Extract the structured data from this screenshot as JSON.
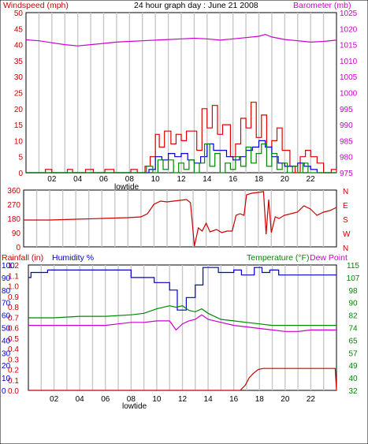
{
  "chart_data": [
    {
      "type": "line",
      "title": "24 hour graph day : June 21 2008",
      "left_axis_label": "Windspeed (mph)",
      "right_axis_label": "Barometer (mb)",
      "left_ylim": [
        0,
        50
      ],
      "left_ticks": [
        "0",
        "5",
        "10",
        "15",
        "20",
        "25",
        "30",
        "35",
        "40",
        "45",
        "50"
      ],
      "right_ylim": [
        975,
        1025
      ],
      "right_ticks": [
        "975",
        "980",
        "985",
        "990",
        "995",
        "1000",
        "1005",
        "1010",
        "1015",
        "1020",
        "1025"
      ],
      "x_ticks": [
        "02",
        "04",
        "06",
        "08",
        "10",
        "12",
        "14",
        "16",
        "18",
        "20",
        "22"
      ],
      "x_marker": "lowtide",
      "colors": {
        "gust": "#dd0000",
        "average": "#0000cc",
        "speed": "#008800",
        "barometer": "#cc00cc"
      },
      "series": [
        {
          "key": "gust",
          "axis": "left",
          "x": [
            0,
            1.5,
            2,
            3.2,
            3.6,
            4.6,
            5.2,
            6.1,
            6.8,
            8.1,
            8.6,
            9.2,
            9.6,
            10,
            10.3,
            10.7,
            11.2,
            11.6,
            12,
            12.4,
            13.2,
            13.6,
            14,
            14.4,
            14.8,
            15.2,
            15.8,
            16.2,
            16.6,
            17,
            17.4,
            17.8,
            18.2,
            18.6,
            19,
            19.4,
            19.8,
            20.4,
            20.8,
            21.2,
            21.6,
            22,
            22.5,
            23,
            23.6,
            24
          ],
          "y": [
            0,
            1,
            0,
            1,
            0,
            1,
            0,
            1,
            0,
            1,
            0,
            2,
            5,
            12,
            8,
            13,
            9,
            12,
            10,
            13,
            7,
            20,
            14,
            21,
            12,
            15,
            5,
            9,
            17,
            14,
            22,
            11,
            18,
            8,
            10,
            14,
            7,
            2,
            0,
            5,
            7,
            5,
            3,
            0,
            1,
            0
          ]
        },
        {
          "key": "average",
          "axis": "left",
          "x": [
            0,
            8.5,
            9,
            9.5,
            10,
            10.5,
            11,
            11.5,
            12,
            12.5,
            13,
            13.5,
            14,
            14.5,
            15,
            15.5,
            16,
            16.5,
            17,
            17.5,
            18,
            18.5,
            19,
            19.5,
            20,
            20.5,
            21,
            21.5,
            22,
            22.5,
            23,
            24
          ],
          "y": [
            0,
            0,
            0,
            1,
            5,
            4,
            6,
            5,
            6,
            4,
            3,
            5,
            9,
            7,
            7,
            5,
            4,
            5,
            7,
            8,
            10,
            8,
            5,
            3,
            2,
            2,
            3,
            2,
            1,
            0,
            0,
            0
          ]
        },
        {
          "key": "speed",
          "axis": "left",
          "x": [
            0,
            8.8,
            9.3,
            9.8,
            10.2,
            10.6,
            11,
            11.4,
            11.8,
            12.2,
            12.6,
            13,
            13.4,
            13.8,
            14.2,
            14.6,
            15,
            15.4,
            15.8,
            16.2,
            16.6,
            17,
            17.4,
            17.8,
            18.2,
            18.6,
            19,
            19.4,
            19.8,
            20.2,
            20.6,
            21,
            21.4,
            21.8,
            22.2,
            24
          ],
          "y": [
            0,
            0,
            2,
            0,
            4,
            1,
            4,
            0,
            3,
            1,
            4,
            0,
            3,
            9,
            2,
            6,
            0,
            3,
            1,
            5,
            2,
            8,
            3,
            6,
            9,
            2,
            6,
            1,
            3,
            0,
            2,
            0,
            3,
            0,
            0,
            0
          ]
        },
        {
          "key": "barometer",
          "axis": "right",
          "x": [
            0,
            1,
            2,
            3,
            4,
            5,
            6,
            7,
            8,
            9,
            10,
            11,
            12,
            13,
            14,
            15,
            16,
            17,
            18,
            18.5,
            19,
            20,
            21,
            22,
            23,
            24
          ],
          "y": [
            1016.5,
            1016.2,
            1015.6,
            1015.0,
            1014.6,
            1015.0,
            1015.4,
            1015.8,
            1016.0,
            1016.2,
            1016.4,
            1016.6,
            1016.8,
            1017.0,
            1016.8,
            1016.4,
            1016.8,
            1017.2,
            1017.6,
            1018.2,
            1017.4,
            1016.6,
            1016.2,
            1015.8,
            1016.0,
            1016.4
          ]
        }
      ]
    },
    {
      "type": "line",
      "title": "",
      "left_ylim": [
        0,
        360
      ],
      "left_ticks": [
        "0",
        "90",
        "180",
        "270",
        "360"
      ],
      "right_ticks": [
        "N",
        "E",
        "S",
        "W",
        "N"
      ],
      "x_ticks": [
        "02",
        "04",
        "06",
        "08",
        "10",
        "12",
        "14",
        "16",
        "18",
        "20",
        "22"
      ],
      "colors": {
        "direction": "#cc0000"
      },
      "series": [
        {
          "key": "direction",
          "axis": "left",
          "x": [
            0,
            2,
            4,
            6,
            8,
            9,
            9.5,
            10,
            10.5,
            11,
            11.5,
            12,
            12.5,
            12.8,
            13.1,
            13.4,
            13.7,
            14,
            14.3,
            14.8,
            15.2,
            15.6,
            16,
            16.3,
            16.6,
            16.9,
            17.1,
            17.5,
            18,
            18.4,
            18.6,
            18.8,
            19,
            19.3,
            19.6,
            20,
            20.5,
            21,
            21.5,
            22,
            22.5,
            23,
            23.5,
            24
          ],
          "y": [
            170,
            170,
            175,
            180,
            185,
            190,
            210,
            270,
            290,
            285,
            290,
            295,
            300,
            280,
            5,
            120,
            100,
            150,
            95,
            110,
            90,
            100,
            100,
            200,
            210,
            200,
            330,
            340,
            345,
            350,
            80,
            300,
            90,
            190,
            180,
            200,
            210,
            220,
            260,
            240,
            200,
            220,
            230,
            250
          ]
        }
      ]
    },
    {
      "type": "line",
      "title": "",
      "left_label_rain": "Rainfall (in)",
      "left_label_humidity": "Humidity %",
      "right_label_temp": "Temperature (°F)",
      "right_label_dew": "Dew Point",
      "rain_ticks": [
        "0.0",
        "0.1",
        "0.2",
        "0.3",
        "0.4",
        "0.5",
        "0.6",
        "0.7",
        "0.8",
        "0.9",
        "1.0",
        "1.1",
        "1.2"
      ],
      "humidity_ticks": [
        "0",
        "10",
        "20",
        "30",
        "40",
        "50",
        "60",
        "70",
        "80",
        "90",
        "100"
      ],
      "temp_ticks": [
        "32",
        "40",
        "49",
        "57",
        "65",
        "74",
        "82",
        "90",
        "98",
        "107",
        "115"
      ],
      "rain_ylim": [
        0,
        1.2
      ],
      "humidity_ylim": [
        0,
        100
      ],
      "temp_ylim": [
        32,
        115
      ],
      "x_ticks": [
        "02",
        "04",
        "06",
        "08",
        "10",
        "12",
        "14",
        "16",
        "18",
        "20",
        "22"
      ],
      "x_marker": "lowtide",
      "colors": {
        "humidity": "#0000cc",
        "temperature": "#008800",
        "dewpoint": "#cc00cc",
        "rainfall": "#cc0000"
      },
      "series": [
        {
          "key": "humidity",
          "axis": "humidity",
          "x": [
            0,
            0.2,
            0.2,
            1.5,
            1.5,
            8,
            8,
            9.8,
            9.8,
            11,
            11,
            11.6,
            11.6,
            12.3,
            12.3,
            13,
            13,
            13.6,
            13.6,
            14.8,
            14.8,
            16,
            16,
            16.6,
            16.6,
            17.6,
            17.6,
            18.2,
            18.2,
            18.8,
            18.8,
            19.5,
            19.5,
            24
          ],
          "y": [
            90,
            90,
            94,
            94,
            96,
            96,
            90,
            90,
            86,
            86,
            80,
            80,
            64,
            64,
            74,
            74,
            84,
            84,
            98,
            98,
            94,
            94,
            96,
            96,
            92,
            92,
            98,
            98,
            94,
            94,
            96,
            96,
            92,
            92
          ]
        },
        {
          "key": "temperature",
          "axis": "temp",
          "x": [
            0,
            2,
            4,
            6,
            8,
            9,
            10,
            11,
            11.5,
            12,
            12.5,
            13,
            13.5,
            14,
            15,
            16,
            17,
            18,
            19,
            20,
            21,
            22,
            23,
            24
          ],
          "y": [
            80,
            80,
            81,
            81,
            82,
            83,
            86,
            88,
            87,
            88,
            85,
            84,
            86,
            83,
            79,
            78,
            77,
            76,
            75,
            75,
            75,
            75,
            75,
            75
          ]
        },
        {
          "key": "dewpoint",
          "axis": "temp",
          "x": [
            0,
            1,
            2,
            3,
            4,
            5,
            6,
            7,
            8,
            9,
            10,
            11,
            11.5,
            12,
            12.5,
            13,
            13.5,
            14,
            15,
            16,
            17,
            18,
            19,
            20,
            21,
            22,
            23,
            24
          ],
          "y": [
            75,
            75,
            75,
            75,
            75,
            75,
            75,
            76,
            77,
            77,
            78,
            78,
            72,
            76,
            78,
            79,
            82,
            79,
            77,
            75,
            74,
            73,
            72,
            71,
            71,
            72,
            72,
            72
          ]
        },
        {
          "key": "rainfall",
          "axis": "rain",
          "x": [
            0,
            16.5,
            16.9,
            17.2,
            17.5,
            17.9,
            18.3,
            19,
            20,
            23.9,
            24
          ],
          "y": [
            0,
            0,
            0.05,
            0.12,
            0.16,
            0.2,
            0.21,
            0.21,
            0.21,
            0.21,
            0
          ]
        }
      ]
    }
  ]
}
